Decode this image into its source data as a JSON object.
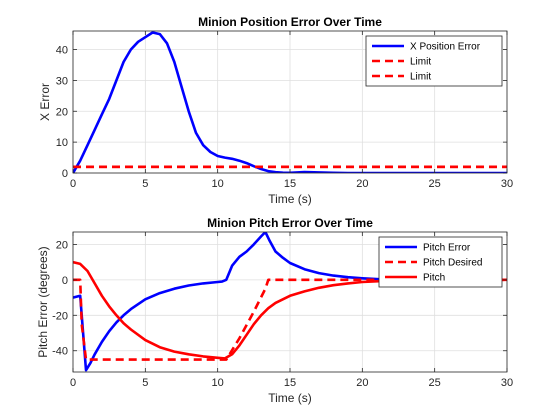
{
  "figure": {
    "background": "#ffffff",
    "axes_color": "#262626"
  },
  "chart_data": [
    {
      "type": "line",
      "title": "Minion Position Error Over Time",
      "xlabel": "Time (s)",
      "ylabel": "X Error",
      "xlim": [
        0,
        30
      ],
      "ylim": [
        0,
        46
      ],
      "xticks": [
        0,
        5,
        10,
        15,
        20,
        25,
        30
      ],
      "yticks": [
        0,
        10,
        20,
        30,
        40
      ],
      "grid": true,
      "legend_position": "top-right",
      "series": [
        {
          "name": "X Position Error",
          "color": "#0000ff",
          "style": "solid",
          "x": [
            0,
            0.5,
            1,
            1.5,
            2,
            2.5,
            3,
            3.5,
            4,
            4.5,
            5,
            5.5,
            6,
            6.5,
            7,
            7.5,
            8,
            8.5,
            9,
            9.5,
            10,
            10.5,
            11,
            11.5,
            12,
            12.5,
            13,
            13.5,
            14,
            14.5,
            15,
            16,
            17,
            18,
            19,
            20,
            22,
            25,
            30
          ],
          "y": [
            0,
            4,
            9,
            14,
            19,
            24,
            30,
            36,
            40,
            42.5,
            44,
            45.5,
            45,
            42,
            36,
            28,
            20,
            13,
            9,
            6.8,
            5.5,
            5,
            4.6,
            4,
            3.2,
            2.2,
            1.3,
            0.6,
            0.25,
            0.1,
            0.05,
            0.3,
            0.2,
            0.05,
            0,
            0,
            0,
            0,
            0
          ]
        },
        {
          "name": "Limit",
          "color": "#ff0000",
          "style": "dashed",
          "x": [
            0,
            30
          ],
          "y": [
            2,
            2
          ]
        },
        {
          "name": "Limit",
          "color": "#ff0000",
          "style": "dashed",
          "x": [
            0,
            30
          ],
          "y": [
            2,
            2
          ]
        }
      ]
    },
    {
      "type": "line",
      "title": "Minion Pitch Error Over Time",
      "xlabel": "Time (s)",
      "ylabel": "Pitch Error (degrees)",
      "xlim": [
        0,
        30
      ],
      "ylim": [
        -52,
        27
      ],
      "xticks": [
        0,
        5,
        10,
        15,
        20,
        25,
        30
      ],
      "yticks": [
        -40,
        -20,
        0,
        20
      ],
      "grid": true,
      "legend_position": "top-right",
      "series": [
        {
          "name": "Pitch Error",
          "color": "#0000ff",
          "style": "solid",
          "x": [
            0,
            0.5,
            0.7,
            0.9,
            1.2,
            1.5,
            2,
            2.5,
            3,
            3.5,
            4,
            5,
            6,
            7,
            8,
            9,
            10,
            10.3,
            10.6,
            11,
            11.5,
            12,
            12.5,
            13,
            13.3,
            13.6,
            14,
            14.5,
            15,
            16,
            17,
            18,
            19,
            20,
            21,
            22,
            22.5
          ],
          "y": [
            -10,
            -9,
            -30,
            -51,
            -47,
            -42,
            -35,
            -29,
            -24,
            -20,
            -16.5,
            -11,
            -7.5,
            -5,
            -3.2,
            -2,
            -1.2,
            -1,
            0,
            8,
            13,
            16,
            20,
            24.5,
            27,
            22,
            16,
            12.5,
            9.5,
            6,
            3.8,
            2.4,
            1.5,
            0.9,
            0.4,
            0.1,
            0
          ]
        },
        {
          "name": "Pitch Desired",
          "color": "#ff0000",
          "style": "dashed",
          "x": [
            0,
            0.5,
            0.6,
            0.9,
            1.1,
            10.6,
            11.5,
            12.5,
            13.3,
            13.5,
            30
          ],
          "y": [
            0,
            0,
            -25,
            -45,
            -45,
            -45,
            -33,
            -18,
            -5,
            0,
            0
          ]
        },
        {
          "name": "Pitch",
          "color": "#ff0000",
          "style": "solid",
          "x": [
            0,
            0.5,
            1,
            1.5,
            2,
            2.5,
            3,
            3.5,
            4,
            5,
            6,
            7,
            8,
            9,
            10,
            10.5,
            11,
            11.5,
            12,
            12.5,
            13,
            13.5,
            14,
            15,
            16,
            17,
            18,
            19,
            20,
            22,
            25,
            30
          ],
          "y": [
            10,
            9,
            5,
            -2,
            -9,
            -15,
            -20,
            -24.5,
            -28,
            -34,
            -38,
            -40.5,
            -42,
            -43.2,
            -44,
            -44.3,
            -42,
            -37,
            -31,
            -25,
            -20,
            -16,
            -13,
            -9,
            -6.5,
            -4.5,
            -3,
            -2,
            -1.2,
            -0.4,
            -0.1,
            0
          ]
        }
      ]
    }
  ]
}
